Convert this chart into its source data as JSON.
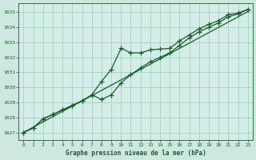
{
  "title": "Graphe pression niveau de la mer (hPa)",
  "background_color": "#cce8e0",
  "plot_bg_color": "#d4ede8",
  "grid_color": "#99ccbb",
  "line_color": "#1a5c2a",
  "marker_color": "#1a5c2a",
  "xlabel_color": "#1a5c2a",
  "x_hours": [
    0,
    1,
    2,
    3,
    4,
    5,
    6,
    7,
    8,
    9,
    10,
    11,
    12,
    13,
    14,
    15,
    16,
    17,
    18,
    19,
    20,
    21,
    22,
    23
  ],
  "series_straight": [
    1027.0,
    1027.35,
    1027.7,
    1028.05,
    1028.4,
    1028.75,
    1029.1,
    1029.45,
    1029.8,
    1030.15,
    1030.5,
    1030.85,
    1031.2,
    1031.55,
    1031.9,
    1032.25,
    1032.6,
    1032.95,
    1033.3,
    1033.65,
    1034.0,
    1034.35,
    1034.7,
    1035.05
  ],
  "series_upper": [
    1027.0,
    1027.3,
    1027.9,
    1028.2,
    1028.5,
    1028.8,
    1029.1,
    1029.5,
    1030.4,
    1031.2,
    1032.6,
    1032.3,
    1032.3,
    1032.5,
    1032.55,
    1032.6,
    1033.1,
    1033.5,
    1033.9,
    1034.2,
    1034.45,
    1034.85,
    1034.95,
    1035.2
  ],
  "series_lower": [
    1027.0,
    1027.3,
    1027.9,
    1028.2,
    1028.5,
    1028.8,
    1029.1,
    1029.5,
    1029.2,
    1029.5,
    1030.3,
    1030.85,
    1031.3,
    1031.7,
    1032.0,
    1032.3,
    1032.8,
    1033.3,
    1033.7,
    1034.0,
    1034.3,
    1034.7,
    1034.9,
    1035.2
  ],
  "ylim_min": 1026.5,
  "ylim_max": 1035.6,
  "yticks": [
    1027,
    1028,
    1029,
    1030,
    1031,
    1032,
    1033,
    1034,
    1035
  ],
  "xlim_min": -0.5,
  "xlim_max": 23.5
}
